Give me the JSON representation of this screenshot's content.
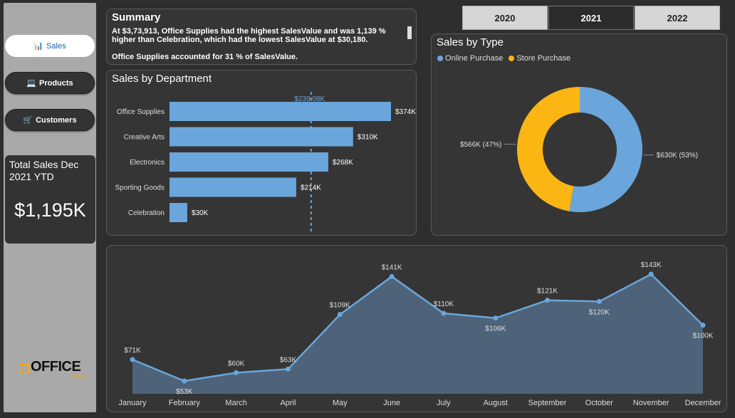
{
  "nav": {
    "items": [
      {
        "label": "Sales",
        "icon": "📊"
      },
      {
        "label": "Products",
        "icon": "💻"
      },
      {
        "label": "Customers",
        "icon": "🛒"
      }
    ]
  },
  "kpi": {
    "title": "Total Sales Dec 2021 YTD",
    "value": "$1,195K"
  },
  "logo": {
    "text": "OFFICE",
    "sub": "Tools"
  },
  "summary": {
    "title": "Summary",
    "line1": "At $3,73,913, Office Supplies had the highest SalesValue and was 1,139 % higher than Celebration, which had the lowest SalesValue at $30,180.",
    "line2": "Office Supplies accounted for 31 % of SalesValue."
  },
  "years": {
    "items": [
      "2020",
      "2021",
      "2022"
    ],
    "selected": "2021"
  },
  "colors": {
    "bar": "#6aa6db",
    "online": "#6aa6db",
    "store": "#fbb614",
    "area": "#4e6379",
    "line": "#6aa6db"
  },
  "chart_data": [
    {
      "id": "dept",
      "type": "bar",
      "orientation": "horizontal",
      "title": "Sales by Department",
      "categories": [
        "Office Supplies",
        "Creative Arts",
        "Electronics",
        "Sporting Goods",
        "Celebration"
      ],
      "values": [
        374,
        310,
        268,
        214,
        30
      ],
      "labels": [
        "$374K",
        "$310K",
        "$268K",
        "$214K",
        "$30K"
      ],
      "reference_line": {
        "value": 239.08,
        "label": "$239.08K"
      },
      "xlim": [
        0,
        400
      ]
    },
    {
      "id": "type",
      "type": "pie",
      "title": "Sales by Type",
      "legend": [
        "Online Purchase",
        "Store Purchase"
      ],
      "values": [
        630,
        566
      ],
      "labels": [
        "$630K (53%)",
        "$566K (47%)"
      ]
    },
    {
      "id": "monthly",
      "type": "area",
      "categories": [
        "January",
        "February",
        "March",
        "April",
        "May",
        "June",
        "July",
        "August",
        "September",
        "October",
        "November",
        "December"
      ],
      "values": [
        71,
        53,
        60,
        63,
        109,
        141,
        110,
        106,
        121,
        120,
        143,
        100
      ],
      "labels": [
        "$71K",
        "$53K",
        "$60K",
        "$63K",
        "$109K",
        "$141K",
        "$110K",
        "$106K",
        "$121K",
        "$120K",
        "$143K",
        "$100K"
      ],
      "ylim": [
        45,
        150
      ]
    }
  ]
}
